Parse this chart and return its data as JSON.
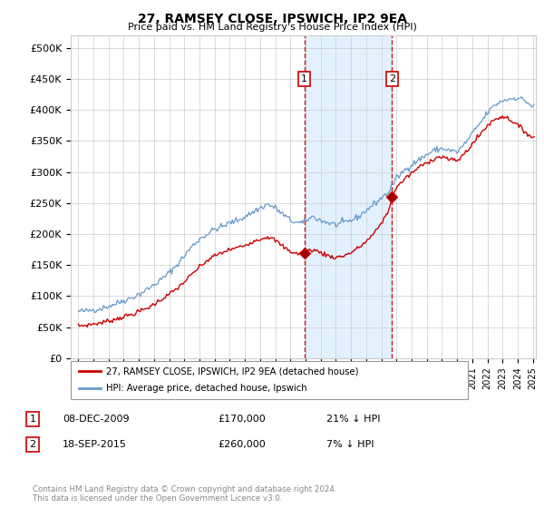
{
  "title": "27, RAMSEY CLOSE, IPSWICH, IP2 9EA",
  "subtitle": "Price paid vs. HM Land Registry's House Price Index (HPI)",
  "ylabel_ticks": [
    "£0",
    "£50K",
    "£100K",
    "£150K",
    "£200K",
    "£250K",
    "£300K",
    "£350K",
    "£400K",
    "£450K",
    "£500K"
  ],
  "ytick_values": [
    0,
    50000,
    100000,
    150000,
    200000,
    250000,
    300000,
    350000,
    400000,
    450000,
    500000
  ],
  "ylim": [
    0,
    520000
  ],
  "sale1": {
    "date_label": "08-DEC-2009",
    "price": 170000,
    "pct": "21% ↓ HPI",
    "x_year": 2009.92
  },
  "sale2": {
    "date_label": "18-SEP-2015",
    "price": 260000,
    "pct": "7% ↓ HPI",
    "x_year": 2015.71
  },
  "legend_line1": "27, RAMSEY CLOSE, IPSWICH, IP2 9EA (detached house)",
  "legend_line2": "HPI: Average price, detached house, Ipswich",
  "footer": "Contains HM Land Registry data © Crown copyright and database right 2024.\nThis data is licensed under the Open Government Licence v3.0.",
  "red_color": "#cc0000",
  "blue_color": "#6699cc",
  "shade_color": "#ddeeff",
  "grid_color": "#cccccc",
  "background_color": "#ffffff",
  "xlim": [
    1994.5,
    2025.2
  ],
  "hpi_anchors": [
    [
      1995.0,
      75000
    ],
    [
      1995.5,
      76000
    ],
    [
      1996.0,
      78000
    ],
    [
      1996.5,
      80000
    ],
    [
      1997.0,
      84000
    ],
    [
      1997.5,
      88000
    ],
    [
      1998.0,
      93000
    ],
    [
      1998.5,
      97000
    ],
    [
      1999.0,
      103000
    ],
    [
      1999.5,
      110000
    ],
    [
      2000.0,
      118000
    ],
    [
      2000.5,
      127000
    ],
    [
      2001.0,
      138000
    ],
    [
      2001.5,
      150000
    ],
    [
      2002.0,
      165000
    ],
    [
      2002.5,
      180000
    ],
    [
      2003.0,
      192000
    ],
    [
      2003.5,
      200000
    ],
    [
      2004.0,
      208000
    ],
    [
      2004.5,
      212000
    ],
    [
      2005.0,
      218000
    ],
    [
      2005.5,
      222000
    ],
    [
      2006.0,
      228000
    ],
    [
      2006.5,
      235000
    ],
    [
      2007.0,
      242000
    ],
    [
      2007.5,
      248000
    ],
    [
      2008.0,
      242000
    ],
    [
      2008.5,
      232000
    ],
    [
      2009.0,
      222000
    ],
    [
      2009.5,
      218000
    ],
    [
      2009.92,
      218000
    ],
    [
      2010.0,
      222000
    ],
    [
      2010.5,
      228000
    ],
    [
      2011.0,
      222000
    ],
    [
      2011.5,
      218000
    ],
    [
      2012.0,
      215000
    ],
    [
      2012.5,
      218000
    ],
    [
      2013.0,
      222000
    ],
    [
      2013.5,
      228000
    ],
    [
      2014.0,
      238000
    ],
    [
      2014.5,
      248000
    ],
    [
      2015.0,
      258000
    ],
    [
      2015.5,
      268000
    ],
    [
      2015.71,
      278000
    ],
    [
      2016.0,
      290000
    ],
    [
      2016.5,
      302000
    ],
    [
      2017.0,
      312000
    ],
    [
      2017.5,
      320000
    ],
    [
      2018.0,
      328000
    ],
    [
      2018.5,
      335000
    ],
    [
      2019.0,
      338000
    ],
    [
      2019.5,
      335000
    ],
    [
      2020.0,
      332000
    ],
    [
      2020.5,
      345000
    ],
    [
      2021.0,
      362000
    ],
    [
      2021.5,
      378000
    ],
    [
      2022.0,
      395000
    ],
    [
      2022.5,
      408000
    ],
    [
      2023.0,
      415000
    ],
    [
      2023.5,
      418000
    ],
    [
      2024.0,
      420000
    ],
    [
      2024.5,
      415000
    ],
    [
      2025.0,
      405000
    ]
  ],
  "prop_anchors": [
    [
      1995.0,
      52000
    ],
    [
      1995.5,
      53000
    ],
    [
      1996.0,
      55000
    ],
    [
      1996.5,
      57000
    ],
    [
      1997.0,
      60000
    ],
    [
      1997.5,
      63000
    ],
    [
      1998.0,
      67000
    ],
    [
      1998.5,
      70000
    ],
    [
      1999.0,
      75000
    ],
    [
      1999.5,
      80000
    ],
    [
      2000.0,
      87000
    ],
    [
      2000.5,
      95000
    ],
    [
      2001.0,
      103000
    ],
    [
      2001.5,
      112000
    ],
    [
      2002.0,
      123000
    ],
    [
      2002.5,
      135000
    ],
    [
      2003.0,
      147000
    ],
    [
      2003.5,
      157000
    ],
    [
      2004.0,
      165000
    ],
    [
      2004.5,
      170000
    ],
    [
      2005.0,
      175000
    ],
    [
      2005.5,
      178000
    ],
    [
      2006.0,
      182000
    ],
    [
      2006.5,
      188000
    ],
    [
      2007.0,
      192000
    ],
    [
      2007.5,
      196000
    ],
    [
      2008.0,
      190000
    ],
    [
      2008.5,
      180000
    ],
    [
      2009.0,
      172000
    ],
    [
      2009.5,
      168000
    ],
    [
      2009.92,
      170000
    ],
    [
      2010.0,
      172000
    ],
    [
      2010.5,
      175000
    ],
    [
      2011.0,
      170000
    ],
    [
      2011.5,
      165000
    ],
    [
      2012.0,
      162000
    ],
    [
      2012.5,
      165000
    ],
    [
      2013.0,
      170000
    ],
    [
      2013.5,
      178000
    ],
    [
      2014.0,
      188000
    ],
    [
      2014.5,
      200000
    ],
    [
      2015.0,
      218000
    ],
    [
      2015.5,
      238000
    ],
    [
      2015.71,
      260000
    ],
    [
      2016.0,
      275000
    ],
    [
      2016.5,
      288000
    ],
    [
      2017.0,
      298000
    ],
    [
      2017.5,
      308000
    ],
    [
      2018.0,
      315000
    ],
    [
      2018.5,
      322000
    ],
    [
      2019.0,
      325000
    ],
    [
      2019.5,
      320000
    ],
    [
      2020.0,
      318000
    ],
    [
      2020.5,
      330000
    ],
    [
      2021.0,
      345000
    ],
    [
      2021.5,
      360000
    ],
    [
      2022.0,
      375000
    ],
    [
      2022.5,
      385000
    ],
    [
      2023.0,
      390000
    ],
    [
      2023.5,
      385000
    ],
    [
      2024.0,
      375000
    ],
    [
      2024.5,
      365000
    ],
    [
      2025.0,
      355000
    ]
  ]
}
